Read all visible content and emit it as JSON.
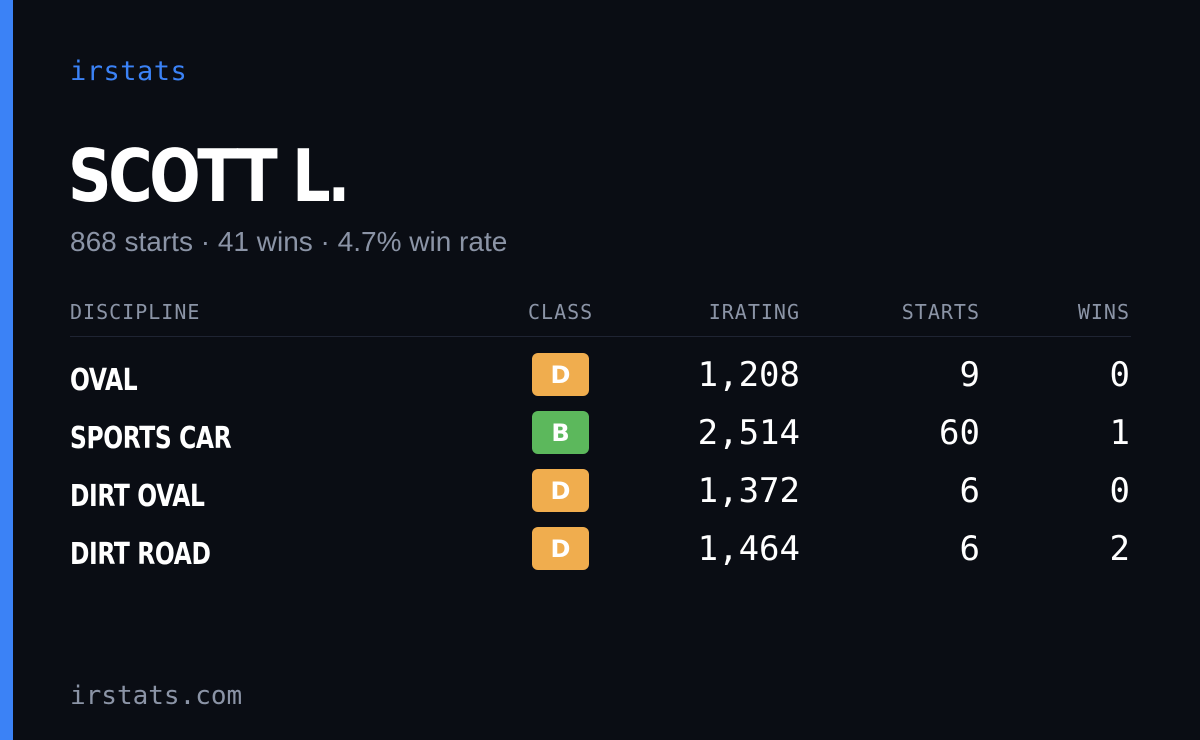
{
  "brand": "irstats",
  "driver": {
    "name": "SCOTT L.",
    "summary": "868 starts · 41 wins · 4.7% win rate"
  },
  "table": {
    "headers": {
      "discipline": "DISCIPLINE",
      "class": "CLASS",
      "irating": "IRATING",
      "starts": "STARTS",
      "wins": "WINS"
    },
    "rows": [
      {
        "discipline": "OVAL",
        "class": "D",
        "class_color": "#f0ad4e",
        "irating": "1,208",
        "starts": "9",
        "wins": "0"
      },
      {
        "discipline": "SPORTS CAR",
        "class": "B",
        "class_color": "#5cb85c",
        "irating": "2,514",
        "starts": "60",
        "wins": "1"
      },
      {
        "discipline": "DIRT OVAL",
        "class": "D",
        "class_color": "#f0ad4e",
        "irating": "1,372",
        "starts": "6",
        "wins": "0"
      },
      {
        "discipline": "DIRT ROAD",
        "class": "D",
        "class_color": "#f0ad4e",
        "irating": "1,464",
        "starts": "6",
        "wins": "2"
      }
    ]
  },
  "footer": "irstats.com",
  "colors": {
    "accent": "#3b82f6",
    "background": "#0a0d14",
    "muted": "#8b94a6"
  }
}
